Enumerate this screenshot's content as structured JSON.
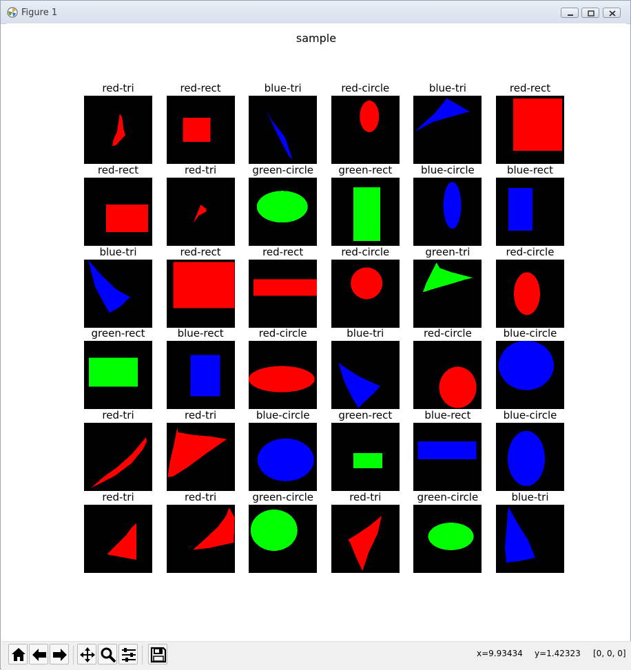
{
  "window": {
    "title": "Figure 1",
    "minimize_label": "minimize",
    "maximize_label": "maximize",
    "close_label": "close"
  },
  "figure": {
    "suptitle": "sample",
    "panels": [
      {
        "label": "red-tri",
        "color": "#ff0000",
        "shape": "tri"
      },
      {
        "label": "red-rect",
        "color": "#ff0000",
        "shape": "rect"
      },
      {
        "label": "blue-tri",
        "color": "#0000ff",
        "shape": "tri"
      },
      {
        "label": "red-circle",
        "color": "#ff0000",
        "shape": "circle"
      },
      {
        "label": "blue-tri",
        "color": "#0000ff",
        "shape": "tri"
      },
      {
        "label": "red-rect",
        "color": "#ff0000",
        "shape": "rect"
      },
      {
        "label": "red-rect",
        "color": "#ff0000",
        "shape": "rect"
      },
      {
        "label": "red-tri",
        "color": "#ff0000",
        "shape": "tri"
      },
      {
        "label": "green-circle",
        "color": "#00ff00",
        "shape": "circle"
      },
      {
        "label": "green-rect",
        "color": "#00ff00",
        "shape": "rect"
      },
      {
        "label": "blue-circle",
        "color": "#0000ff",
        "shape": "circle"
      },
      {
        "label": "blue-rect",
        "color": "#0000ff",
        "shape": "rect"
      },
      {
        "label": "blue-tri",
        "color": "#0000ff",
        "shape": "tri"
      },
      {
        "label": "red-rect",
        "color": "#ff0000",
        "shape": "rect"
      },
      {
        "label": "red-rect",
        "color": "#ff0000",
        "shape": "rect"
      },
      {
        "label": "red-circle",
        "color": "#ff0000",
        "shape": "circle"
      },
      {
        "label": "green-tri",
        "color": "#00ff00",
        "shape": "tri"
      },
      {
        "label": "red-circle",
        "color": "#ff0000",
        "shape": "circle"
      },
      {
        "label": "green-rect",
        "color": "#00ff00",
        "shape": "rect"
      },
      {
        "label": "blue-rect",
        "color": "#0000ff",
        "shape": "rect"
      },
      {
        "label": "red-circle",
        "color": "#ff0000",
        "shape": "circle"
      },
      {
        "label": "blue-tri",
        "color": "#0000ff",
        "shape": "tri"
      },
      {
        "label": "red-circle",
        "color": "#ff0000",
        "shape": "circle"
      },
      {
        "label": "blue-circle",
        "color": "#0000ff",
        "shape": "circle"
      },
      {
        "label": "red-tri",
        "color": "#ff0000",
        "shape": "tri"
      },
      {
        "label": "red-tri",
        "color": "#ff0000",
        "shape": "tri"
      },
      {
        "label": "blue-circle",
        "color": "#0000ff",
        "shape": "circle"
      },
      {
        "label": "green-rect",
        "color": "#00ff00",
        "shape": "rect"
      },
      {
        "label": "blue-rect",
        "color": "#0000ff",
        "shape": "rect"
      },
      {
        "label": "blue-circle",
        "color": "#0000ff",
        "shape": "circle"
      },
      {
        "label": "red-tri",
        "color": "#ff0000",
        "shape": "tri"
      },
      {
        "label": "red-tri",
        "color": "#ff0000",
        "shape": "tri"
      },
      {
        "label": "green-circle",
        "color": "#00ff00",
        "shape": "circle"
      },
      {
        "label": "red-tri",
        "color": "#ff0000",
        "shape": "tri"
      },
      {
        "label": "green-circle",
        "color": "#00ff00",
        "shape": "circle"
      },
      {
        "label": "blue-tri",
        "color": "#0000ff",
        "shape": "tri"
      }
    ]
  },
  "toolbar": {
    "icons": [
      "home-icon",
      "back-arrow-icon",
      "forward-arrow-icon",
      "pan-move-icon",
      "zoom-magnifier-icon",
      "configure-subplots-icon",
      "save-floppy-icon"
    ]
  },
  "status": {
    "x": "x=9.93434",
    "y": "y=1.42323",
    "pixel": "[0, 0, 0]"
  },
  "colors": {
    "panel_background": "#000000",
    "red": "#ff0000",
    "green": "#00ff00",
    "blue": "#0000ff"
  }
}
